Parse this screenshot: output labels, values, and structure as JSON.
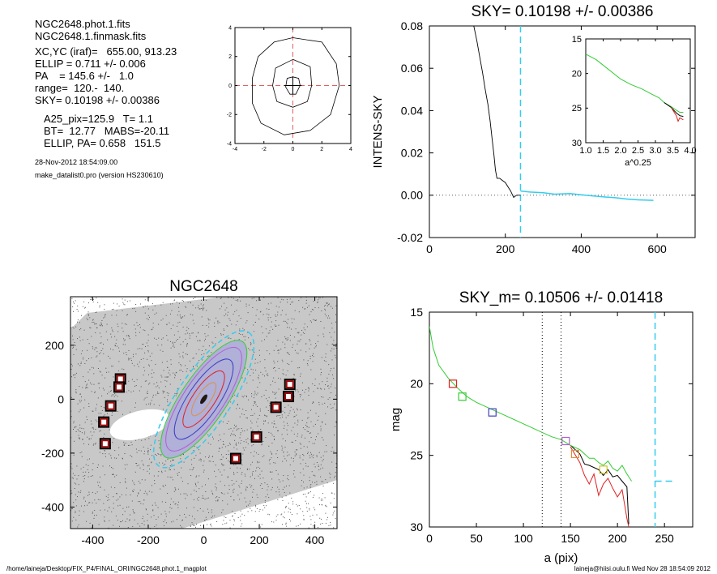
{
  "info": {
    "lines1": [
      "NGC2648.phot.1.fits",
      "NGC2648.1.finmask.fits"
    ],
    "lines2": [
      "XC,YC (iraf)=   655.00, 913.23",
      "ELLIP = 0.711 +/- 0.006",
      "PA    = 145.6 +/-   1.0",
      "range=  120.-  140.",
      "SKY= 0.10198 +/- 0.00386"
    ],
    "lines3": [
      "A25_pix=125.9   T= 1.1",
      "BT=  12.77   MABS=-20.11",
      "ELLIP, PA= 0.658   151.5"
    ],
    "date": "28-Nov-2012 18:54:09.00",
    "program": "make_datalist0.pro (version HS230610)"
  },
  "footer": {
    "left": "/home/laineja/Desktop/FIX_P4/FINAL_ORI/NGC2648.phot.1_magplot",
    "right": "laineja@hiisi.oulu.fi  Wed Nov 28 18:54:09 2012"
  },
  "colors": {
    "cyan": "#33ccee",
    "red": "#e02020",
    "green": "#33cc33",
    "blue": "#4040c0",
    "purple": "#b060d0",
    "orange": "#e09040",
    "box": "#9a0a0a",
    "mark_red": "#d03030"
  },
  "chart_data": [
    {
      "id": "contour",
      "type": "line",
      "xlim": [
        -4,
        4
      ],
      "ylim": [
        -4,
        4
      ],
      "xticks": [
        -4,
        -2,
        0,
        2,
        4
      ],
      "yticks": [
        -4,
        -2,
        0,
        2,
        4
      ],
      "contours": [
        [
          [
            0.0,
            0.6
          ],
          [
            0.4,
            0.5
          ],
          [
            0.5,
            0.0
          ],
          [
            0.2,
            -0.6
          ],
          [
            -0.2,
            -0.6
          ],
          [
            -0.5,
            -0.1
          ],
          [
            -0.4,
            0.5
          ]
        ],
        [
          [
            0.0,
            1.8
          ],
          [
            1.2,
            1.3
          ],
          [
            1.3,
            0.0
          ],
          [
            1.0,
            -1.1
          ],
          [
            0.0,
            -1.5
          ],
          [
            -1.1,
            -1.1
          ],
          [
            -1.4,
            0.0
          ],
          [
            -1.2,
            1.2
          ]
        ],
        [
          [
            0.0,
            3.3
          ],
          [
            2.0,
            3.0
          ],
          [
            3.0,
            1.5
          ],
          [
            3.2,
            0.0
          ],
          [
            2.6,
            -2.0
          ],
          [
            1.2,
            -3.1
          ],
          [
            -0.6,
            -3.4
          ],
          [
            -2.2,
            -2.6
          ],
          [
            -2.8,
            -1.2
          ],
          [
            -2.8,
            0.5
          ],
          [
            -2.4,
            2.0
          ],
          [
            -1.3,
            3.0
          ]
        ]
      ]
    },
    {
      "id": "sky",
      "type": "line",
      "title": "SKY= 0.10198 +/- 0.00386",
      "ylabel": "INTENS-SKY",
      "xlim": [
        0,
        700
      ],
      "ylim": [
        -0.02,
        0.08
      ],
      "xticks": [
        0,
        200,
        400,
        600
      ],
      "yticks": [
        -0.02,
        0.0,
        0.02,
        0.04,
        0.06,
        0.08
      ],
      "ytick_labels": [
        "-0.02",
        "0.00",
        "0.02",
        "0.04",
        "0.06",
        "0.08"
      ],
      "sky_line_x": 240,
      "series": [
        {
          "color": "black",
          "points": [
            [
              117,
              0.08
            ],
            [
              125,
              0.073
            ],
            [
              133,
              0.065
            ],
            [
              140,
              0.058
            ],
            [
              147,
              0.05
            ],
            [
              154,
              0.043
            ],
            [
              160,
              0.035
            ],
            [
              165,
              0.027
            ],
            [
              170,
              0.019
            ],
            [
              174,
              0.012
            ],
            [
              178,
              0.008
            ],
            [
              185,
              0.008
            ],
            [
              192,
              0.007
            ],
            [
              200,
              0.006
            ],
            [
              207,
              0.004
            ],
            [
              214,
              0.002
            ],
            [
              222,
              -0.001
            ],
            [
              230,
              0.0
            ],
            [
              240,
              0.0
            ]
          ]
        },
        {
          "color": "cyan",
          "points": [
            [
              240,
              0.002
            ],
            [
              265,
              0.0015
            ],
            [
              300,
              0.0012
            ],
            [
              330,
              0.0005
            ],
            [
              370,
              0.0008
            ],
            [
              400,
              0.0002
            ],
            [
              430,
              -0.0003
            ],
            [
              460,
              -0.0008
            ],
            [
              490,
              -0.0012
            ],
            [
              520,
              -0.0018
            ],
            [
              550,
              -0.0022
            ],
            [
              590,
              -0.0024
            ]
          ]
        }
      ],
      "inset": {
        "xlabel": "a^0.25",
        "xlim": [
          1.0,
          4.0
        ],
        "ylim": [
          15,
          30
        ],
        "reversed": true,
        "xticks": [
          1.0,
          1.5,
          2.0,
          2.5,
          3.0,
          3.5,
          4.0
        ],
        "xtick_labels": [
          "1.0",
          "1.5",
          "2.0",
          "2.5",
          "3.0",
          "3.5",
          "4.0"
        ],
        "yticks": [
          15,
          20,
          25,
          30
        ],
        "series": [
          {
            "color": "green",
            "points": [
              [
                1.0,
                17.2
              ],
              [
                1.3,
                18.0
              ],
              [
                1.6,
                19.2
              ],
              [
                2.0,
                20.8
              ],
              [
                2.3,
                21.6
              ],
              [
                2.6,
                22.2
              ],
              [
                2.9,
                23.0
              ],
              [
                3.1,
                23.5
              ],
              [
                3.25,
                24.2
              ],
              [
                3.45,
                24.8
              ],
              [
                3.6,
                25.3
              ],
              [
                3.7,
                25.6
              ],
              [
                3.8,
                25.6
              ]
            ]
          },
          {
            "color": "black",
            "points": [
              [
                3.25,
                24.2
              ],
              [
                3.45,
                24.9
              ],
              [
                3.6,
                25.7
              ],
              [
                3.7,
                26.1
              ],
              [
                3.8,
                26.2
              ]
            ]
          },
          {
            "color": "red",
            "points": [
              [
                3.45,
                24.9
              ],
              [
                3.6,
                26.1
              ],
              [
                3.65,
                26.9
              ],
              [
                3.7,
                26.4
              ],
              [
                3.8,
                26.7
              ]
            ]
          }
        ]
      }
    },
    {
      "id": "image",
      "type": "scatter",
      "title": "NGC2648",
      "xlim": [
        -480,
        480
      ],
      "ylim": [
        -480,
        380
      ],
      "xticks": [
        -400,
        -200,
        0,
        200,
        400
      ],
      "yticks": [
        -400,
        -200,
        0,
        200
      ],
      "masks": [
        [
          -300,
          75
        ],
        [
          -305,
          45
        ],
        [
          -335,
          -25
        ],
        [
          -360,
          -85
        ],
        [
          -355,
          -165
        ],
        [
          115,
          -220
        ],
        [
          190,
          -140
        ],
        [
          260,
          -30
        ],
        [
          310,
          55
        ],
        [
          305,
          10
        ]
      ],
      "ellipses": [
        {
          "color": "cyan",
          "a": 290,
          "b": 96,
          "pa_deg": 56,
          "dashed": true
        },
        {
          "color": "green",
          "a": 250,
          "b": 82,
          "pa_deg": 56
        },
        {
          "color": "purple",
          "a": 220,
          "b": 72,
          "pa_deg": 56
        },
        {
          "color": "blue",
          "a": 170,
          "b": 56,
          "pa_deg": 56
        },
        {
          "color": "red",
          "a": 120,
          "b": 40,
          "pa_deg": 56
        },
        {
          "color": "orange",
          "a": 70,
          "b": 24,
          "pa_deg": 56
        }
      ]
    },
    {
      "id": "mag",
      "type": "line",
      "title": "SKY_m=  0.10506 +/- 0.01418",
      "xlabel": "a (pix)",
      "ylabel": "mag",
      "xlim": [
        0,
        280
      ],
      "ylim": [
        15,
        30
      ],
      "reversed": true,
      "xticks": [
        0,
        50,
        100,
        150,
        200,
        250
      ],
      "yticks": [
        15,
        20,
        25,
        30
      ],
      "vlines": [
        120,
        140
      ],
      "cyan_vline": 240,
      "cyan_tail": [
        [
          240,
          26.8
        ],
        [
          260,
          26.8
        ]
      ],
      "series": [
        {
          "color": "green",
          "points": [
            [
              0,
              16.0
            ],
            [
              4,
              17.5
            ],
            [
              10,
              18.7
            ],
            [
              20,
              19.6
            ],
            [
              30,
              20.3
            ],
            [
              40,
              20.9
            ],
            [
              50,
              21.3
            ],
            [
              60,
              21.6
            ],
            [
              70,
              21.9
            ],
            [
              80,
              22.2
            ],
            [
              90,
              22.5
            ],
            [
              100,
              22.8
            ],
            [
              110,
              23.1
            ],
            [
              120,
              23.4
            ],
            [
              130,
              23.7
            ],
            [
              140,
              23.9
            ],
            [
              150,
              24.3
            ],
            [
              160,
              24.6
            ],
            [
              170,
              25.2
            ],
            [
              175,
              25.2
            ],
            [
              180,
              25.5
            ],
            [
              185,
              25.7
            ],
            [
              190,
              25.4
            ],
            [
              195,
              25.9
            ],
            [
              200,
              26.1
            ],
            [
              205,
              25.7
            ],
            [
              210,
              26.3
            ],
            [
              215,
              26.8
            ]
          ]
        },
        {
          "color": "black",
          "points": [
            [
              150,
              24.3
            ],
            [
              160,
              24.9
            ],
            [
              165,
              25.6
            ],
            [
              170,
              25.7
            ],
            [
              180,
              26.0
            ],
            [
              185,
              26.4
            ],
            [
              190,
              26.0
            ],
            [
              195,
              26.5
            ],
            [
              200,
              26.4
            ],
            [
              205,
              26.8
            ],
            [
              210,
              27.2
            ],
            [
              212,
              29.8
            ]
          ]
        },
        {
          "color": "red",
          "points": [
            [
              150,
              24.4
            ],
            [
              160,
              25.5
            ],
            [
              165,
              26.4
            ],
            [
              170,
              27.0
            ],
            [
              175,
              26.3
            ],
            [
              180,
              27.8
            ],
            [
              185,
              27.0
            ],
            [
              190,
              26.6
            ],
            [
              195,
              27.3
            ],
            [
              200,
              27.9
            ],
            [
              205,
              27.4
            ],
            [
              210,
              29.4
            ],
            [
              212,
              30.0
            ]
          ]
        }
      ],
      "markers": [
        {
          "color": "red",
          "x": 25,
          "y": 20.0
        },
        {
          "color": "green",
          "x": 35,
          "y": 20.9
        },
        {
          "color": "blue",
          "x": 67,
          "y": 22.0
        },
        {
          "color": "purple",
          "x": 145,
          "y": 24.0
        },
        {
          "color": "orange",
          "x": 155,
          "y": 24.9
        },
        {
          "color": "yellow",
          "x": 185,
          "y": 26.0
        }
      ]
    }
  ]
}
